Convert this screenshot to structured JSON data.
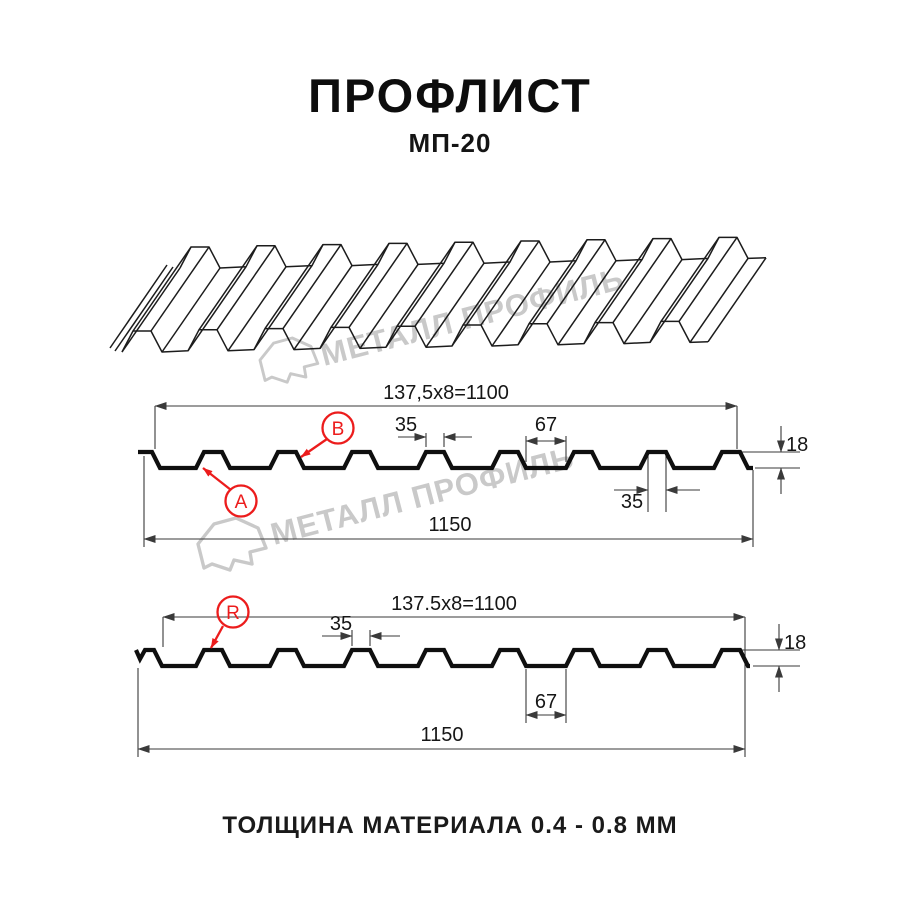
{
  "page": {
    "title": "ПРОФЛИСТ",
    "subtitle": "МП-20",
    "footer_note": "ТОЛЩИНА МАТЕРИАЛА 0.4 - 0.8 ММ"
  },
  "watermark": {
    "text": "МЕТАЛЛ ПРОФИЛЬ",
    "color": "#c9c9c9"
  },
  "colors": {
    "accent_red": "#ec1c1c",
    "drawing_line": "#0f0f0f",
    "dimension_line": "#3a3a3a"
  },
  "profile_a": {
    "overall_top": "137,5x8=1100",
    "label_a": "A",
    "label_b": "B",
    "dim_rib_top": "35",
    "dim_valley": "67",
    "dim_rib_bottom": "35",
    "dim_height": "18",
    "dim_overall": "1150"
  },
  "profile_r": {
    "overall_top": "137.5x8=1100",
    "label_r": "R",
    "dim_rib": "35",
    "dim_valley": "67",
    "dim_height": "18",
    "dim_overall": "1150"
  }
}
